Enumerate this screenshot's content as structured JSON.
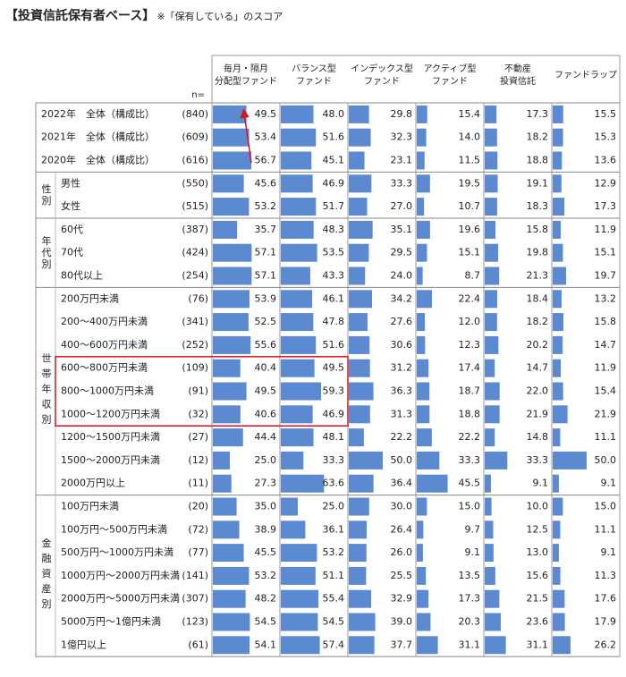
{
  "header": {
    "title": "【投資信託保有者ベース】",
    "note": "※「保有している」のスコア"
  },
  "table": {
    "n_label": "n=",
    "columns": [
      [
        "毎月・隔月",
        "分配型ファンド"
      ],
      [
        "バランス型",
        "ファンド"
      ],
      [
        "インデックス型",
        "ファンド"
      ],
      [
        "アクティブ型",
        "ファンド"
      ],
      [
        "不動産",
        "投資信託"
      ],
      [
        "ファンドラップ"
      ]
    ],
    "sections": [
      {
        "rows": [
          {
            "label": "2022年　全体（構成比）",
            "n": "(840)",
            "values": [
              "49.5",
              "48.0",
              "29.8",
              "15.4",
              "17.3",
              "15.5"
            ]
          },
          {
            "label": "2021年　全体（構成比）",
            "n": "(609)",
            "values": [
              "53.4",
              "51.6",
              "32.3",
              "14.0",
              "18.2",
              "15.3"
            ]
          },
          {
            "label": "2020年　全体（構成比）",
            "n": "(616)",
            "values": [
              "56.7",
              "45.1",
              "23.1",
              "11.5",
              "18.8",
              "13.6"
            ]
          }
        ]
      },
      {
        "label": "性別",
        "rows": [
          {
            "label": "男性",
            "n": "(550)",
            "values": [
              "45.6",
              "46.9",
              "33.3",
              "19.5",
              "19.1",
              "12.9"
            ]
          },
          {
            "label": "女性",
            "n": "(515)",
            "values": [
              "53.2",
              "51.7",
              "27.0",
              "10.7",
              "18.3",
              "17.3"
            ]
          }
        ]
      },
      {
        "label": "年代別",
        "rows": [
          {
            "label": "60代",
            "n": "(387)",
            "values": [
              "35.7",
              "48.3",
              "35.1",
              "19.6",
              "15.8",
              "11.9"
            ]
          },
          {
            "label": "70代",
            "n": "(424)",
            "values": [
              "57.1",
              "53.5",
              "29.5",
              "15.1",
              "19.8",
              "15.1"
            ]
          },
          {
            "label": "80代以上",
            "n": "(254)",
            "values": [
              "57.1",
              "43.3",
              "24.0",
              "8.7",
              "21.3",
              "19.7"
            ]
          }
        ]
      },
      {
        "label": "世帯年収別",
        "rows": [
          {
            "label": "200万円未満",
            "n": "(76)",
            "values": [
              "53.9",
              "46.1",
              "34.2",
              "22.4",
              "18.4",
              "13.2"
            ]
          },
          {
            "label": "200～400万円未満",
            "n": "(341)",
            "values": [
              "52.5",
              "47.8",
              "27.6",
              "12.0",
              "18.2",
              "15.8"
            ]
          },
          {
            "label": "400～600万円未満",
            "n": "(252)",
            "values": [
              "55.6",
              "51.6",
              "30.6",
              "12.3",
              "20.2",
              "14.7"
            ]
          },
          {
            "label": "600～800万円未満",
            "n": "(109)",
            "values": [
              "40.4",
              "49.5",
              "31.2",
              "17.4",
              "14.7",
              "11.9"
            ]
          },
          {
            "label": "800～1000万円未満",
            "n": "(91)",
            "values": [
              "49.5",
              "59.3",
              "36.3",
              "18.7",
              "22.0",
              "15.4"
            ]
          },
          {
            "label": "1000～1200万円未満",
            "n": "(32)",
            "values": [
              "40.6",
              "46.9",
              "31.3",
              "18.8",
              "21.9",
              "21.9"
            ]
          },
          {
            "label": "1200～1500万円未満",
            "n": "(27)",
            "values": [
              "44.4",
              "48.1",
              "22.2",
              "22.2",
              "14.8",
              "11.1"
            ]
          },
          {
            "label": "1500～2000万円未満",
            "n": "(12)",
            "values": [
              "25.0",
              "33.3",
              "50.0",
              "33.3",
              "33.3",
              "50.0"
            ]
          },
          {
            "label": "2000万円以上",
            "n": "(11)",
            "values": [
              "27.3",
              "63.6",
              "36.4",
              "45.5",
              "9.1",
              "9.1"
            ]
          }
        ]
      },
      {
        "label": "金融資産別",
        "rows": [
          {
            "label": "100万円未満",
            "n": "(20)",
            "values": [
              "35.0",
              "25.0",
              "30.0",
              "15.0",
              "10.0",
              "15.0"
            ]
          },
          {
            "label": "100万円～500万円未満",
            "n": "(72)",
            "values": [
              "38.9",
              "36.1",
              "26.4",
              "9.7",
              "12.5",
              "11.1"
            ]
          },
          {
            "label": "500万円～1000万円未満",
            "n": "(77)",
            "values": [
              "45.5",
              "53.2",
              "26.0",
              "9.1",
              "13.0",
              "9.1"
            ]
          },
          {
            "label": "1000万円～2000万円未満",
            "n": "(141)",
            "values": [
              "53.2",
              "51.1",
              "25.5",
              "13.5",
              "15.6",
              "11.3"
            ]
          },
          {
            "label": "2000万円～5000万円未満",
            "n": "(307)",
            "values": [
              "48.2",
              "55.4",
              "32.9",
              "17.3",
              "21.5",
              "17.6"
            ]
          },
          {
            "label": "5000万円～1億円未満",
            "n": "(123)",
            "values": [
              "54.5",
              "54.5",
              "39.0",
              "20.3",
              "23.6",
              "17.9"
            ]
          },
          {
            "label": "1億円以上",
            "n": "(61)",
            "values": [
              "54.1",
              "57.4",
              "37.7",
              "31.1",
              "31.1",
              "26.2"
            ]
          }
        ]
      }
    ]
  }
}
